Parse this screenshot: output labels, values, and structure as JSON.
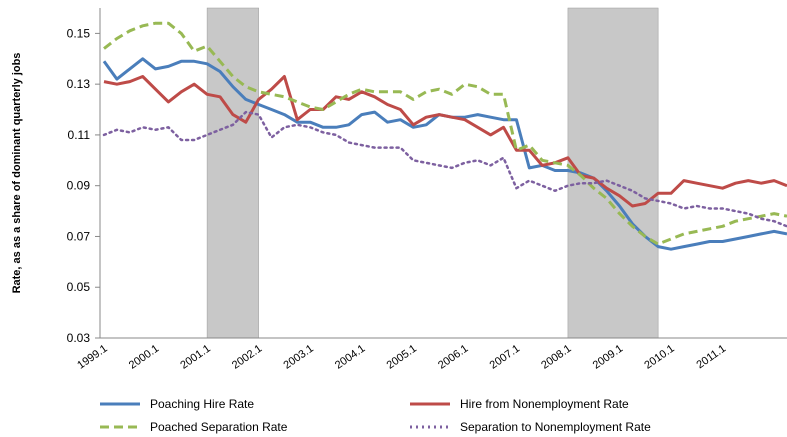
{
  "chart_data": {
    "type": "line",
    "y_label": "Rate, as as a share of dominant quarterly jobs",
    "categories": [
      "1999.1",
      null,
      null,
      null,
      "2000.1",
      null,
      null,
      null,
      "2001.1",
      null,
      null,
      null,
      "2002.1",
      null,
      null,
      null,
      "2003.1",
      null,
      null,
      null,
      "2004.1",
      null,
      null,
      null,
      "2005.1",
      null,
      null,
      null,
      "2006.1",
      null,
      null,
      null,
      "2007.1",
      null,
      null,
      null,
      "2008.1",
      null,
      null,
      null,
      "2009.1",
      null,
      null,
      null,
      "2010.1",
      null,
      null,
      null,
      "2011.1",
      null,
      null,
      null,
      null,
      null
    ],
    "ylim": [
      0.03,
      0.16
    ],
    "yticks": [
      0.03,
      0.05,
      0.07,
      0.09,
      0.11,
      0.13,
      0.15
    ],
    "shaded": [
      {
        "from": 8,
        "to": 12
      },
      {
        "from": 36,
        "to": 43
      }
    ],
    "legend": "bottom",
    "series": [
      {
        "name": "Poaching Hire Rate",
        "color": "#4a7ebb",
        "dash": "solid",
        "values": [
          0.139,
          0.132,
          0.136,
          0.14,
          0.136,
          0.137,
          0.139,
          0.139,
          0.138,
          0.135,
          0.129,
          0.124,
          0.122,
          0.12,
          0.118,
          0.115,
          0.115,
          0.113,
          0.113,
          0.114,
          0.118,
          0.119,
          0.115,
          0.116,
          0.113,
          0.114,
          0.118,
          0.117,
          0.117,
          0.118,
          0.117,
          0.116,
          0.116,
          0.097,
          0.098,
          0.096,
          0.096,
          0.095,
          0.093,
          0.088,
          0.082,
          0.075,
          0.07,
          0.066,
          0.065,
          0.066,
          0.067,
          0.068,
          0.068,
          0.069,
          0.07,
          0.071,
          0.072,
          0.071
        ]
      },
      {
        "name": "Hire from Nonemployment Rate",
        "color": "#be4b48",
        "dash": "solid",
        "values": [
          0.131,
          0.13,
          0.131,
          0.133,
          0.128,
          0.123,
          0.127,
          0.13,
          0.126,
          0.125,
          0.118,
          0.115,
          0.124,
          0.128,
          0.133,
          0.116,
          0.12,
          0.12,
          0.125,
          0.124,
          0.127,
          0.125,
          0.122,
          0.12,
          0.114,
          0.117,
          0.118,
          0.117,
          0.116,
          0.113,
          0.11,
          0.113,
          0.104,
          0.104,
          0.098,
          0.099,
          0.101,
          0.094,
          0.093,
          0.089,
          0.086,
          0.082,
          0.083,
          0.087,
          0.087,
          0.092,
          0.091,
          0.09,
          0.089,
          0.091,
          0.092,
          0.091,
          0.092,
          0.09
        ]
      },
      {
        "name": "Poached Separation Rate",
        "color": "#98b954",
        "dash": "dashed",
        "values": [
          0.144,
          0.148,
          0.151,
          0.153,
          0.154,
          0.154,
          0.15,
          0.143,
          0.145,
          0.139,
          0.133,
          0.129,
          0.127,
          0.126,
          0.125,
          0.123,
          0.121,
          0.12,
          0.123,
          0.126,
          0.128,
          0.127,
          0.127,
          0.127,
          0.124,
          0.127,
          0.128,
          0.126,
          0.13,
          0.129,
          0.126,
          0.126,
          0.104,
          0.106,
          0.1,
          0.099,
          0.098,
          0.094,
          0.089,
          0.085,
          0.079,
          0.074,
          0.07,
          0.067,
          0.069,
          0.071,
          0.072,
          0.073,
          0.074,
          0.076,
          0.077,
          0.078,
          0.079,
          0.078
        ]
      },
      {
        "name": "Separation to Nonemployment Rate",
        "color": "#7d60a0",
        "dash": "dotted",
        "values": [
          0.11,
          0.112,
          0.111,
          0.113,
          0.112,
          0.113,
          0.108,
          0.108,
          0.11,
          0.112,
          0.114,
          0.119,
          0.118,
          0.109,
          0.113,
          0.114,
          0.113,
          0.111,
          0.11,
          0.107,
          0.106,
          0.105,
          0.105,
          0.105,
          0.1,
          0.099,
          0.098,
          0.097,
          0.099,
          0.1,
          0.098,
          0.101,
          0.089,
          0.092,
          0.09,
          0.088,
          0.09,
          0.091,
          0.091,
          0.092,
          0.09,
          0.088,
          0.085,
          0.084,
          0.083,
          0.081,
          0.082,
          0.081,
          0.081,
          0.08,
          0.079,
          0.077,
          0.076,
          0.074
        ]
      }
    ]
  }
}
